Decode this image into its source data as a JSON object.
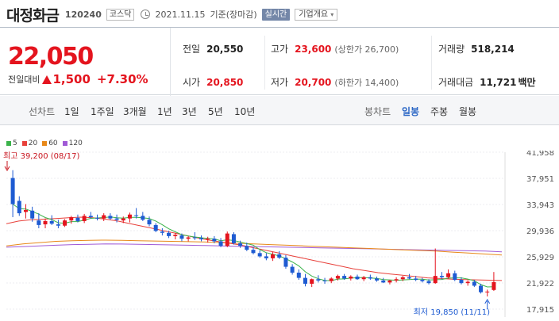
{
  "header": {
    "name": "대정화금",
    "code": "120240",
    "market": "코스닥",
    "date": "2021.11.15",
    "basis": "기준(장마감)",
    "realtime_label": "실시간",
    "corp_info_label": "기업개요"
  },
  "price": {
    "now": "22,050",
    "diff_label": "전일대비",
    "diff": "1,500",
    "rate": "+7.30%"
  },
  "stats": {
    "prev_label": "전일",
    "prev": "20,550",
    "high_label": "고가",
    "high": "23,600",
    "upper_limit": "(상한가 26,700)",
    "volume_label": "거래량",
    "volume": "518,214",
    "open_label": "시가",
    "open": "20,850",
    "low_label": "저가",
    "low": "20,700",
    "lower_limit": "(하한가 14,400)",
    "amount_label": "거래대금",
    "amount": "11,721",
    "amount_unit": "백만"
  },
  "tabs": {
    "line_label": "선차트",
    "line_items": [
      "1일",
      "1주일",
      "3개월",
      "1년",
      "3년",
      "5년",
      "10년"
    ],
    "candle_label": "봉차트",
    "candle_items": [
      "일봉",
      "주봉",
      "월봉"
    ],
    "active_candle": "일봉"
  },
  "colors": {
    "up": "#e4141e",
    "down": "#1e5bd2",
    "ma5": "#3bb34a",
    "ma20": "#e8413b",
    "ma60": "#e8891a",
    "ma120": "#a05ad6"
  },
  "chart_data": {
    "type": "candlestick",
    "legend": [
      "5",
      "20",
      "60",
      "120"
    ],
    "yticks": [
      "41,958",
      "37,951",
      "33,943",
      "29,936",
      "25,929",
      "21,922",
      "17,915"
    ],
    "ylim": [
      17915,
      41958
    ],
    "max_annotation": "최고 39,200 (08/17)",
    "min_annotation": "최저 19,850 (11/11)",
    "candles": [
      [
        38000,
        39200,
        32000,
        34000
      ],
      [
        34500,
        35200,
        32200,
        32600
      ],
      [
        32800,
        34000,
        31800,
        33100
      ],
      [
        33000,
        33600,
        31300,
        31800
      ],
      [
        31500,
        32600,
        30300,
        30800
      ],
      [
        30900,
        31800,
        30300,
        31400
      ],
      [
        31400,
        32300,
        30800,
        31000
      ],
      [
        30900,
        31600,
        30300,
        30700
      ],
      [
        30700,
        31700,
        30500,
        31500
      ],
      [
        31500,
        32200,
        31000,
        32000
      ],
      [
        31900,
        32400,
        31200,
        31400
      ],
      [
        31400,
        32500,
        31100,
        32200
      ],
      [
        32200,
        32800,
        31800,
        32000
      ],
      [
        31900,
        32400,
        31500,
        31800
      ],
      [
        31800,
        32600,
        31400,
        32300
      ],
      [
        32200,
        32600,
        31600,
        31800
      ],
      [
        31800,
        32400,
        31200,
        31600
      ],
      [
        31500,
        32100,
        31100,
        31800
      ],
      [
        31800,
        32700,
        31200,
        32400
      ],
      [
        32300,
        33400,
        31800,
        32200
      ],
      [
        32200,
        32800,
        31400,
        31600
      ],
      [
        31600,
        32100,
        30600,
        30900
      ],
      [
        30800,
        31100,
        29700,
        29900
      ],
      [
        29800,
        30300,
        29200,
        29600
      ],
      [
        29600,
        29900,
        28800,
        29100
      ],
      [
        29100,
        29600,
        28600,
        29300
      ],
      [
        29200,
        29500,
        28300,
        28700
      ],
      [
        28700,
        29100,
        28300,
        28900
      ],
      [
        28900,
        29700,
        28500,
        28800
      ],
      [
        28800,
        29200,
        28300,
        28600
      ],
      [
        28600,
        29000,
        28100,
        28700
      ],
      [
        28700,
        29100,
        28000,
        28300
      ],
      [
        28300,
        28800,
        27400,
        27600
      ],
      [
        27600,
        29800,
        27400,
        29500
      ],
      [
        29400,
        29700,
        27800,
        28000
      ],
      [
        28000,
        28400,
        27300,
        27600
      ],
      [
        27600,
        28100,
        26800,
        27000
      ],
      [
        27000,
        27400,
        26300,
        26500
      ],
      [
        26500,
        26900,
        25800,
        26000
      ],
      [
        26000,
        26500,
        25400,
        25700
      ],
      [
        25700,
        26700,
        25300,
        26300
      ],
      [
        26300,
        26800,
        25600,
        25800
      ],
      [
        25800,
        26200,
        24100,
        24400
      ],
      [
        24400,
        24800,
        23200,
        23500
      ],
      [
        23500,
        24000,
        22400,
        22700
      ],
      [
        22700,
        23300,
        21400,
        21800
      ],
      [
        21800,
        22600,
        21300,
        22500
      ],
      [
        22500,
        23100,
        22000,
        22300
      ],
      [
        22300,
        22700,
        21800,
        22200
      ],
      [
        22200,
        22800,
        21900,
        22600
      ],
      [
        22600,
        23200,
        22300,
        23000
      ],
      [
        23000,
        23300,
        22400,
        22600
      ],
      [
        22600,
        23100,
        22300,
        22900
      ],
      [
        22900,
        23200,
        22400,
        22500
      ],
      [
        22500,
        23000,
        22200,
        22800
      ],
      [
        22800,
        23200,
        22400,
        22600
      ],
      [
        22600,
        22900,
        22100,
        22300
      ],
      [
        22300,
        22700,
        21900,
        22000
      ],
      [
        22000,
        22400,
        21700,
        22300
      ],
      [
        22300,
        22800,
        22000,
        22500
      ],
      [
        22500,
        23000,
        22200,
        22800
      ],
      [
        22800,
        23300,
        22500,
        22600
      ],
      [
        22600,
        23000,
        22200,
        22400
      ],
      [
        22400,
        22700,
        22000,
        22200
      ],
      [
        22200,
        22500,
        21700,
        21900
      ],
      [
        21900,
        27200,
        21800,
        23000
      ],
      [
        23000,
        23600,
        22500,
        22800
      ],
      [
        22800,
        24000,
        22600,
        23400
      ],
      [
        23400,
        23800,
        22200,
        22400
      ],
      [
        22400,
        22800,
        21700,
        21900
      ],
      [
        21900,
        22300,
        21500,
        22100
      ],
      [
        22100,
        22400,
        21300,
        21500
      ],
      [
        21500,
        21800,
        20300,
        20500
      ],
      [
        20500,
        20900,
        19850,
        20600
      ],
      [
        20850,
        23600,
        20700,
        22050
      ]
    ],
    "ma20": [
      31000,
      31400,
      31600,
      31700,
      31800,
      31900,
      32000,
      31900,
      31700,
      31400,
      31000,
      30600,
      30200,
      29800,
      29400,
      29000,
      28600,
      28300,
      28000,
      27700,
      27300,
      26900,
      26500,
      26100,
      25700,
      25300,
      24900,
      24500,
      24100,
      23800,
      23500,
      23300,
      23100,
      22900,
      22700,
      22600,
      22500,
      22450,
      22400,
      22350,
      22300
    ],
    "ma60": [
      27600,
      27900,
      28100,
      28300,
      28400,
      28450,
      28480,
      28450,
      28400,
      28350,
      28300,
      28250,
      28200,
      28100,
      28000,
      27900,
      27800,
      27700,
      27600,
      27500,
      27400,
      27300,
      27200,
      27100,
      27000,
      26900,
      26800,
      26650,
      26500,
      26350,
      26200
    ],
    "ma120": [
      27400,
      27500,
      27600,
      27700,
      27800,
      27850,
      27900,
      27880,
      27850,
      27800,
      27750,
      27700,
      27650,
      27600,
      27550,
      27500,
      27450,
      27400,
      27350,
      27300,
      27250,
      27200,
      27150,
      27100,
      27050,
      27000,
      26950,
      26900,
      26850,
      26800,
      26700
    ]
  }
}
